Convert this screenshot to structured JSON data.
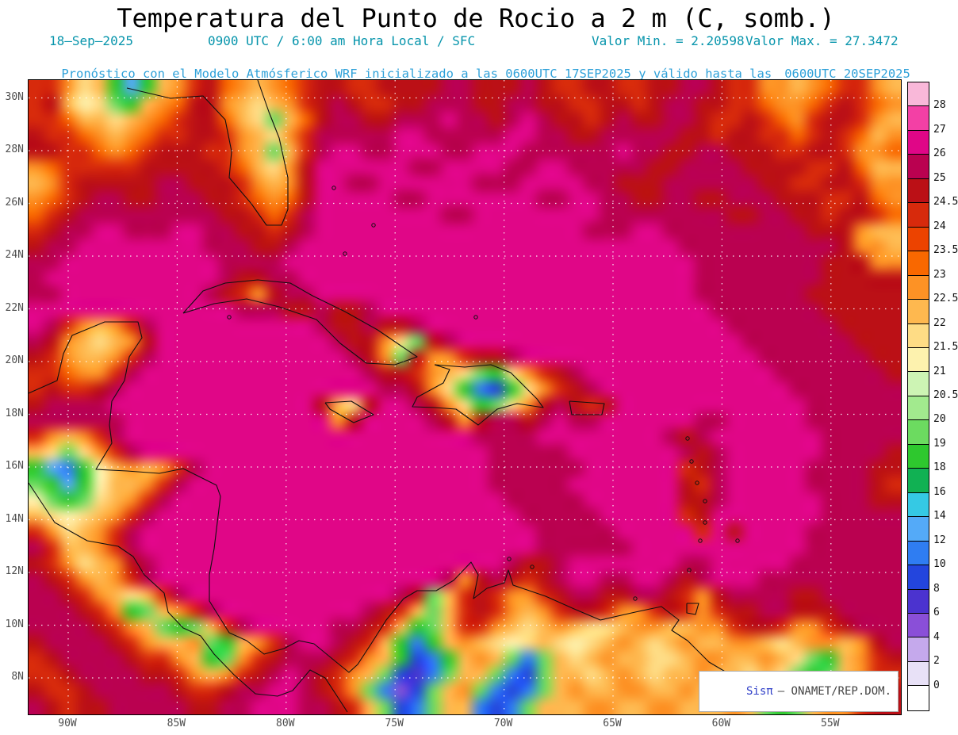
{
  "title": "Temperatura del Punto de Rocio a 2 m (C, somb.)",
  "subtitle": {
    "date": "18–Sep–2025",
    "time": "0900 UTC / 6:00 am Hora Local / SFC",
    "min_label": "Valor Min. = 2.20598",
    "max_label": "Valor Max. = 27.3472",
    "forecast_prefix": "Pronóstico con el Modelo Atmósferico WRF inicializado a las 0600UTC_17SEP2025 y válido hasta las",
    "forecast_valid": "0600UTC_20SEP2025"
  },
  "axes": {
    "lat_labels": [
      "30N",
      "28N",
      "26N",
      "24N",
      "22N",
      "20N",
      "18N",
      "16N",
      "14N",
      "12N",
      "10N",
      "8N"
    ],
    "lon_labels": [
      "90W",
      "85W",
      "80W",
      "75W",
      "70W",
      "65W",
      "60W",
      "55W"
    ]
  },
  "colorbar": {
    "levels": [
      "28",
      "27",
      "26",
      "25",
      "24.5",
      "24",
      "23.5",
      "23",
      "22.5",
      "22",
      "21.5",
      "21",
      "20.5",
      "20",
      "19",
      "18",
      "16",
      "14",
      "12",
      "10",
      "8",
      "6",
      "4",
      "2",
      "0"
    ],
    "colors": [
      "#f9b8d9",
      "#f340a5",
      "#e00687",
      "#ba0150",
      "#bb1016",
      "#d72a0c",
      "#ec4300",
      "#f96800",
      "#fd9225",
      "#feb84f",
      "#fedc85",
      "#fdf2ae",
      "#cdf4b4",
      "#a2ea8e",
      "#6cdb60",
      "#2ec82e",
      "#11b153",
      "#35c9e4",
      "#54aaf8",
      "#2f7df2",
      "#2345dd",
      "#4b33cf",
      "#8a4fd8",
      "#c5a9ec",
      "#e8e1f7",
      "#ffffff"
    ]
  },
  "attribution": {
    "brand": "Sisπ",
    "org": "– ONAMET/REP.DOM."
  },
  "colors": {
    "title": "#000000",
    "subtitle_line1": "#0795ac",
    "subtitle_line2": "#2fa1d9",
    "axis_labels": "#4d4d4d",
    "gridlines": "#ffffff",
    "coastlines": "#101010",
    "attribution_brand": "#2e3ec8",
    "attribution_text": "#444444"
  },
  "chart_data": {
    "type": "heatmap",
    "title": "Temperatura del Punto de Rocio a 2 m (C, somb.)",
    "variable": "dew point temperature at 2 m",
    "units": "C",
    "value_min": 2.20598,
    "value_max": 27.3472,
    "lon_range_w": [
      92,
      52
    ],
    "lat_range_n": [
      6.6,
      30.7
    ],
    "lat_ticks": [
      30,
      28,
      26,
      24,
      22,
      20,
      18,
      16,
      14,
      12,
      10,
      8
    ],
    "lon_ticks_w": [
      90,
      85,
      80,
      75,
      70,
      65,
      60,
      55
    ],
    "levels": [
      0,
      2,
      4,
      6,
      8,
      10,
      12,
      14,
      16,
      18,
      19,
      20,
      20.5,
      21,
      21.5,
      22,
      22.5,
      23,
      23.5,
      24,
      24.5,
      25,
      26,
      27,
      28
    ],
    "palette": [
      "#ffffff",
      "#e8e1f7",
      "#c5a9ec",
      "#8a4fd8",
      "#4b33cf",
      "#2345dd",
      "#2f7df2",
      "#54aaf8",
      "#35c9e4",
      "#11b153",
      "#2ec82e",
      "#6cdb60",
      "#a2ea8e",
      "#cdf4b4",
      "#fdf2ae",
      "#fedc85",
      "#feb84f",
      "#fd9225",
      "#f96800",
      "#ec4300",
      "#d72a0c",
      "#bb1016",
      "#ba0150",
      "#e00687",
      "#f340a5",
      "#f9b8d9"
    ],
    "legend_position": "right",
    "grid": {
      "note": "55x40 approximation of the dew-point field; row 0 = north (~30.7N), col 0 = west (~92W); each char indexes palette via charmap",
      "charmap": "0123456789ABCDEFGHIJKLMNOP",
      "rows": [
        "KKHFGA7AGHKLIHGHIKLLKKLLLLMMLLLMLKKLLKKLLMMLKKHHGHIKKHG",
        "KLGEFBAGHILLHGFGHKLMLKKLLMMMLLMMLLKKLLKLMMLLKKIHHIKLKIH",
        "KKIGGFGHIKLLIGFBGILMMLLMMMNMMLMNMLLKLMLLMMLKKLKIHKLLKHG",
        "LKKIHGHIKKLLKHGFHKMMMMMNNMMMMMNNMMLLMMMMMLLKLLKKIKLKIGH",
        "LLKKIHIKLLLKKHGBGKMNNMMNNNMMNNNMMMMMMNMMLLMMLLLKKLLKHHI",
        "HIKKKKKLLLLLKIGFHLNNNNNNMMNNNNMMNNMMMMMLLMMMMLLLLKKLIGG",
        "GHKLLLLLMMLLLKHGHLNNMMNNNNNNMMMNNNNMMLLLMMMMMMLLKKLLKHH",
        "HIKLMMLLMMMLLKIHILNNNNNMMNNNNNNNMMNNMMLLMMLLMMMLLLKKLIH",
        "IKLMMMMMMMMMLLKIKMNNNNNNNNMMNNNNNNNNMMMMMMMMLLMMLLKLLKI",
        "KLMMNNMMMNNMMLLKLMNNNNNNNNNNNNNNNNNMMMNNMMMMMMMMMLLLHGG",
        "LMMNNNNNNNNMMMLLMNNNNNNNNNNNNNNNNNNNNNNNNMMMMMMMMMMLHHG",
        "MMNNNNNNNNNNMMMMNNNNNNNNNNNNNNNNNNNNNNNNNNMMMMMMMMLLLHH",
        "MNNNNNNNNNNNMLLMMNNNNNNNNNNNNNNNNNNNNNNNNNMMMMMMMMLLLLL",
        "MMNNNNNNNNNMLKHLMMNNNNNNNNNNNNNNNNNNNNNNNNMMMMMMMLLLLLL",
        "NNNNNNNNNNNNNMMMLLMLLMNNNNNNNNNNNNNNNNNNNNNMMMMMMMLLLLL",
        "NMKHGHKMNNNNNNNNNNMLLMLLMNNNNNNNNNNNNNNNNNNNMMMMMMMLLLL",
        "MLHGFGHLNNNNNNNNNNNMLLHFBLMNNNNNNNNNNNNNNNNNNMMMMMMMLLL",
        "LKHGGHKMNNNNNNNNNNNNMLHBLHHKLLMNNNNNNNNNNNNNNNMMMMMMMLL",
        "KKIHHKMNNNNNNNNNNNNNNMLLKHGFBAFHKLMNNNNNNNNNNNNMMMMMMML",
        "KLKKLMNNNNNNNNNNNNNNNNMMLHFA65AFHKLMNNNNNNNNNNNNMMMMMMM",
        "LMMMMNNNNNNNNNNNNNLGFLNNMLHFABFHLMLKLNNNNNNNNNNNNMMMMMM",
        "MMMMMMNNNNNNNNNNNNNHLNNNNMLHLMMLMNMMNNNNNNMMNNNNNMMMMMM",
        "KHGHKMNNNNNNNNNNNNNNNNNNNNNNMMMMNNNNNNNNMLMNNNNNNNMMMMM",
        "GFBFHKMNNNNNNNNNNNNNNNNNNNNNNMMMMMNNNNNNNMLMNNNNNNMMMML",
        "A76AEGHGHKMNNNNNNNNNNNNNNNNNNMMMMMMNNNNNNKLMNNNNNMMMMLL",
        "BA7AEGGHKMNNNNNNNNNNNNNNNNNNNMMMMMNNNNNNNLKMNNNNNMMMMLK",
        "EBABFGHKMNNNNNNNNNNNNNNNNNNNNNMMMMMNNNNNNLLMNNNNNNMMMLL",
        "GFEFGHKMNNNNNNNNNNNNNNNNNNNNNNNMMMMMNNNNNKLNNNNNNNMMMMM",
        "KHFGHKMNNNNNNNNNNNNNNNNNNNNNNNNNMMMMMNNNNNKNLNNNNMMMMMM",
        "MKGGHKMNNNNNNNNNNNNNNNNNNNNNNNNNMMMMMMNNNNNNNNNNNMMMMMM",
        "LKHFGHLMNNNNNNNNNNNNNNNNNNNNNNMLLMNNNNNNNMMNNNNNMMMMMMM",
        "MLKHGHKMNNNNNNNNNNNNNNNNNNMHLMLKLMNNMMNNMLMNNNMMMMMMMMM",
        "MMLKHGFGKMNNNNNNNNNNNNNMLBGKLKHHKLMMLLMMLKHLMMMMLLMMMMM",
        "MMMLKHABGHKMNNNNNNNNNMLKGBGKLKHGHKLLKHHKLKHKLLMMLLLMMMM",
        "MMMMLKHGBABGKMNNNNNMMLKGABGKKHGFGHGFFGHHGGHHKLLKHHKLMMM",
        "LMMMMLKHGGHBAGHKMNNMLKGA6AGHGFEFGFEFGHGFGHGGHHGFGHHGHLM",
        "KLMMMMLKKHGABHKLMMMLKHGA56AGHGB6BGFGHGGFFGHHGGHGFBAGHKL",
        "KKLMMMMLLKHGHKLMNMLKHGB546BGGB65BGGFGHGFGGHGGFGFBABGHKK",
        "LKKLMMMMMLKKLMMNNMLKHB635BGHB656BGHGGHHGGHGHGGGBBGGHKKL",
        "MLKLLMMMMMLLMMNNNMMLKGB56BGG656BGGGHHGGHHGGGHGBABGHHKLL"
      ]
    }
  }
}
